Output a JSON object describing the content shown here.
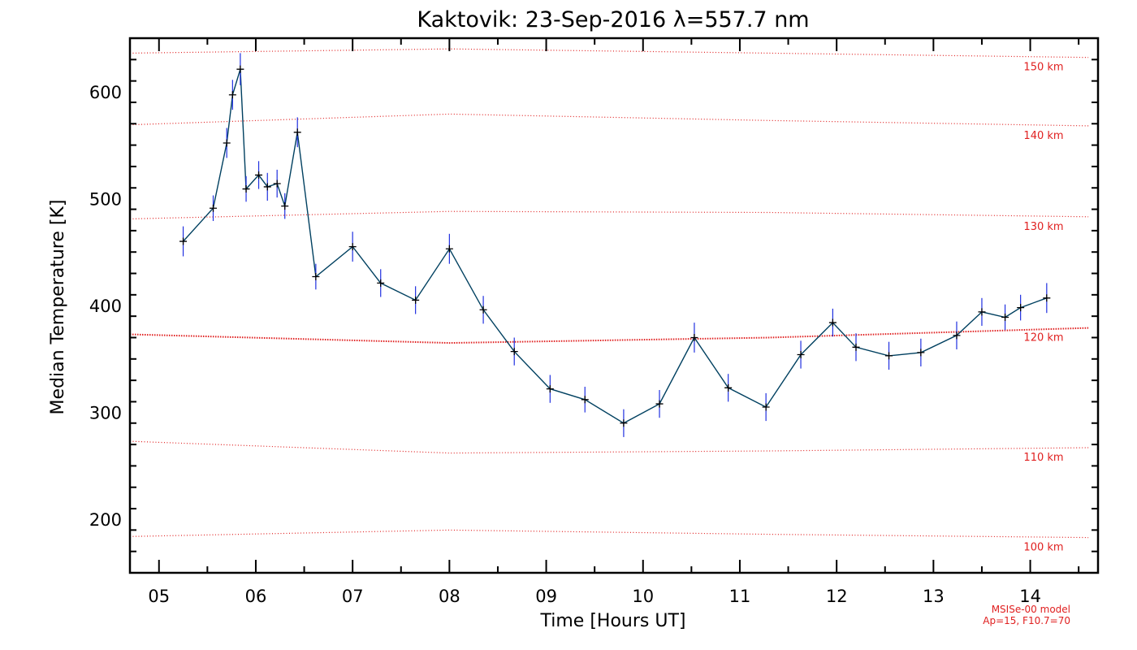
{
  "chart_data": {
    "type": "line",
    "title": "Kaktovik: 23-Sep-2016 λ=557.7 nm",
    "xlabel": "Time [Hours UT]",
    "ylabel": "Median Temperature [K]",
    "xlim": [
      4.7,
      14.7
    ],
    "ylim": [
      150,
      650
    ],
    "x_ticks": [
      {
        "v": 5,
        "label": "05"
      },
      {
        "v": 6,
        "label": "06"
      },
      {
        "v": 7,
        "label": "07"
      },
      {
        "v": 8,
        "label": "08"
      },
      {
        "v": 9,
        "label": "09"
      },
      {
        "v": 10,
        "label": "10"
      },
      {
        "v": 11,
        "label": "11"
      },
      {
        "v": 12,
        "label": "12"
      },
      {
        "v": 13,
        "label": "13"
      },
      {
        "v": 14,
        "label": "14"
      }
    ],
    "y_ticks": [
      {
        "v": 200,
        "label": "200"
      },
      {
        "v": 300,
        "label": "300"
      },
      {
        "v": 400,
        "label": "400"
      },
      {
        "v": 500,
        "label": "500"
      },
      {
        "v": 600,
        "label": "600"
      }
    ],
    "series": [
      {
        "x": [
          5.25,
          5.56,
          5.7,
          5.76,
          5.84,
          5.9,
          6.03,
          6.12,
          6.22,
          6.3,
          6.43,
          6.62,
          7.0,
          7.29,
          7.65,
          8.0,
          8.35,
          8.67,
          9.04,
          9.4,
          9.8,
          10.17,
          10.53,
          10.88,
          11.27,
          11.63,
          11.96,
          12.2,
          12.54,
          12.87,
          13.24,
          13.5,
          13.74,
          13.9,
          14.17
        ],
        "y": [
          460,
          491,
          552,
          597,
          621,
          509,
          522,
          511,
          514,
          493,
          562,
          427,
          455,
          421,
          405,
          453,
          396,
          357,
          322,
          312,
          290,
          308,
          370,
          323,
          305,
          354,
          384,
          361,
          353,
          356,
          372,
          394,
          389,
          398,
          407
        ],
        "err": [
          14,
          12,
          14,
          14,
          15,
          12,
          13,
          13,
          13,
          12,
          14,
          12,
          14,
          13,
          13,
          14,
          13,
          13,
          13,
          12,
          13,
          13,
          14,
          13,
          13,
          13,
          13,
          13,
          13,
          13,
          13,
          13,
          12,
          12,
          14
        ],
        "color": "#004060",
        "error_color": "#2030e0"
      }
    ],
    "reference_lines": [
      {
        "label": "150 km",
        "y": [
          636,
          640,
          636,
          632
        ],
        "color": "#e02020",
        "style": "dotted"
      },
      {
        "label": "140 km",
        "y": [
          569,
          579,
          573,
          568
        ],
        "color": "#e02020",
        "style": "dotted"
      },
      {
        "label": "130 km",
        "y": [
          481,
          488,
          487,
          483
        ],
        "color": "#e02020",
        "style": "dotted"
      },
      {
        "label": "120 km",
        "y": [
          373,
          365,
          370,
          379
        ],
        "color": "#e02020",
        "style": "dotted",
        "emphasis": true
      },
      {
        "label": "110 km",
        "y": [
          273,
          262,
          264,
          267
        ],
        "color": "#e02020",
        "style": "dotted"
      },
      {
        "label": "100 km",
        "y": [
          184,
          190,
          186,
          183
        ],
        "color": "#e02020",
        "style": "dotted"
      }
    ],
    "reference_x": [
      4.7,
      8.0,
      11.3,
      14.6
    ],
    "annotations": [
      "MSISe-00 model",
      "Ap=15, F10.7=70"
    ],
    "grid": false
  }
}
